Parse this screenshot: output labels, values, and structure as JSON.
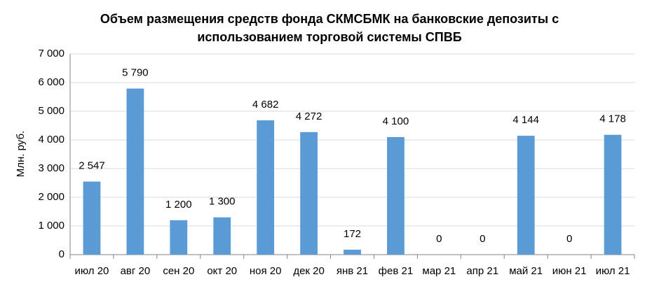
{
  "chart_data": {
    "type": "bar",
    "title": "Объем размещения средств фонда СКМСБМК на банковские депозиты с использованием торговой системы СПВБ",
    "y_label": "Млн. руб.",
    "categories": [
      "июл 20",
      "авг 20",
      "сен 20",
      "окт 20",
      "ноя 20",
      "дек 20",
      "янв 21",
      "фев 21",
      "мар 21",
      "апр 21",
      "май 21",
      "июн 21",
      "июл 21"
    ],
    "values": [
      2547,
      5790,
      1200,
      1300,
      4682,
      4272,
      172,
      4100,
      0,
      0,
      4144,
      0,
      4178
    ],
    "value_labels": [
      "2 547",
      "5 790",
      "1 200",
      "1 300",
      "4 682",
      "4 272",
      "172",
      "4 100",
      "0",
      "0",
      "4 144",
      "0",
      "4 178"
    ],
    "color": "#5b9bd5",
    "ylim": [
      0,
      7000
    ],
    "yticks": [
      0,
      {
        "value": 1000,
        "label": "1 000"
      },
      {
        "value": 2000,
        "label": "2 000"
      },
      {
        "value": 3000,
        "label": "3 000"
      },
      {
        "value": 4000,
        "label": "4 000"
      },
      {
        "value": 5000,
        "label": "5 000"
      },
      {
        "value": 6000,
        "label": "6 000"
      },
      {
        "value": 7000,
        "label": "7 000"
      }
    ],
    "grid": true
  }
}
